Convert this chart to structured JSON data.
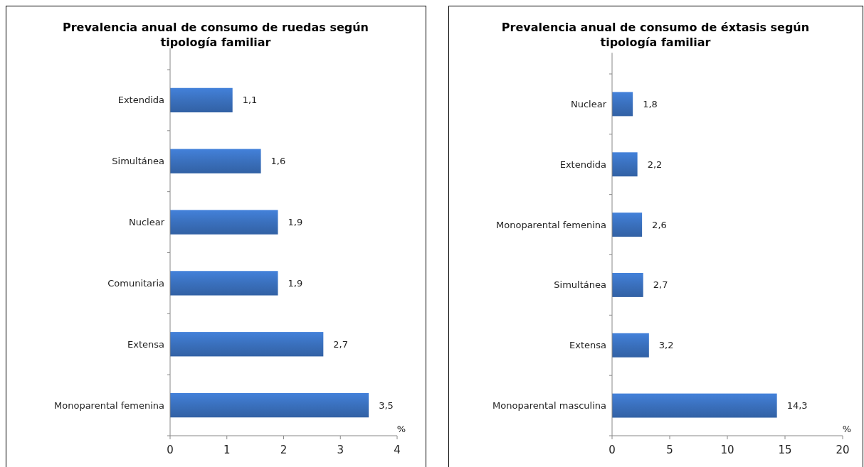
{
  "chart_data": [
    {
      "type": "bar",
      "orientation": "horizontal",
      "title": "Prevalencia anual de consumo de ruedas según tipología familiar",
      "xlabel": "%",
      "categories": [
        "Extendida",
        "Simultánea",
        "Nuclear",
        "Comunitaria",
        "Extensa",
        "Monoparental femenina"
      ],
      "values": [
        1.1,
        1.6,
        1.9,
        1.9,
        2.7,
        3.5
      ],
      "value_labels": [
        "1,1",
        "1,6",
        "1,9",
        "1,9",
        "2,7",
        "3,5"
      ],
      "color": "#3a70bd",
      "xlim": [
        0,
        4
      ],
      "xticks": [
        0,
        1,
        2,
        3,
        4
      ]
    },
    {
      "type": "bar",
      "orientation": "horizontal",
      "title": "Prevalencia anual de consumo de éxtasis según tipología familiar",
      "xlabel": "%",
      "categories": [
        "Nuclear",
        "Extendida",
        "Monoparental femenina",
        "Simultánea",
        "Extensa",
        "Monoparental masculina"
      ],
      "values": [
        1.8,
        2.2,
        2.6,
        2.7,
        3.2,
        14.3
      ],
      "value_labels": [
        "1,8",
        "2,2",
        "2,6",
        "2,7",
        "3,2",
        "14,3"
      ],
      "color": "#3a70bd",
      "xlim": [
        0,
        20
      ],
      "xticks": [
        0,
        5,
        10,
        15,
        20
      ]
    }
  ]
}
